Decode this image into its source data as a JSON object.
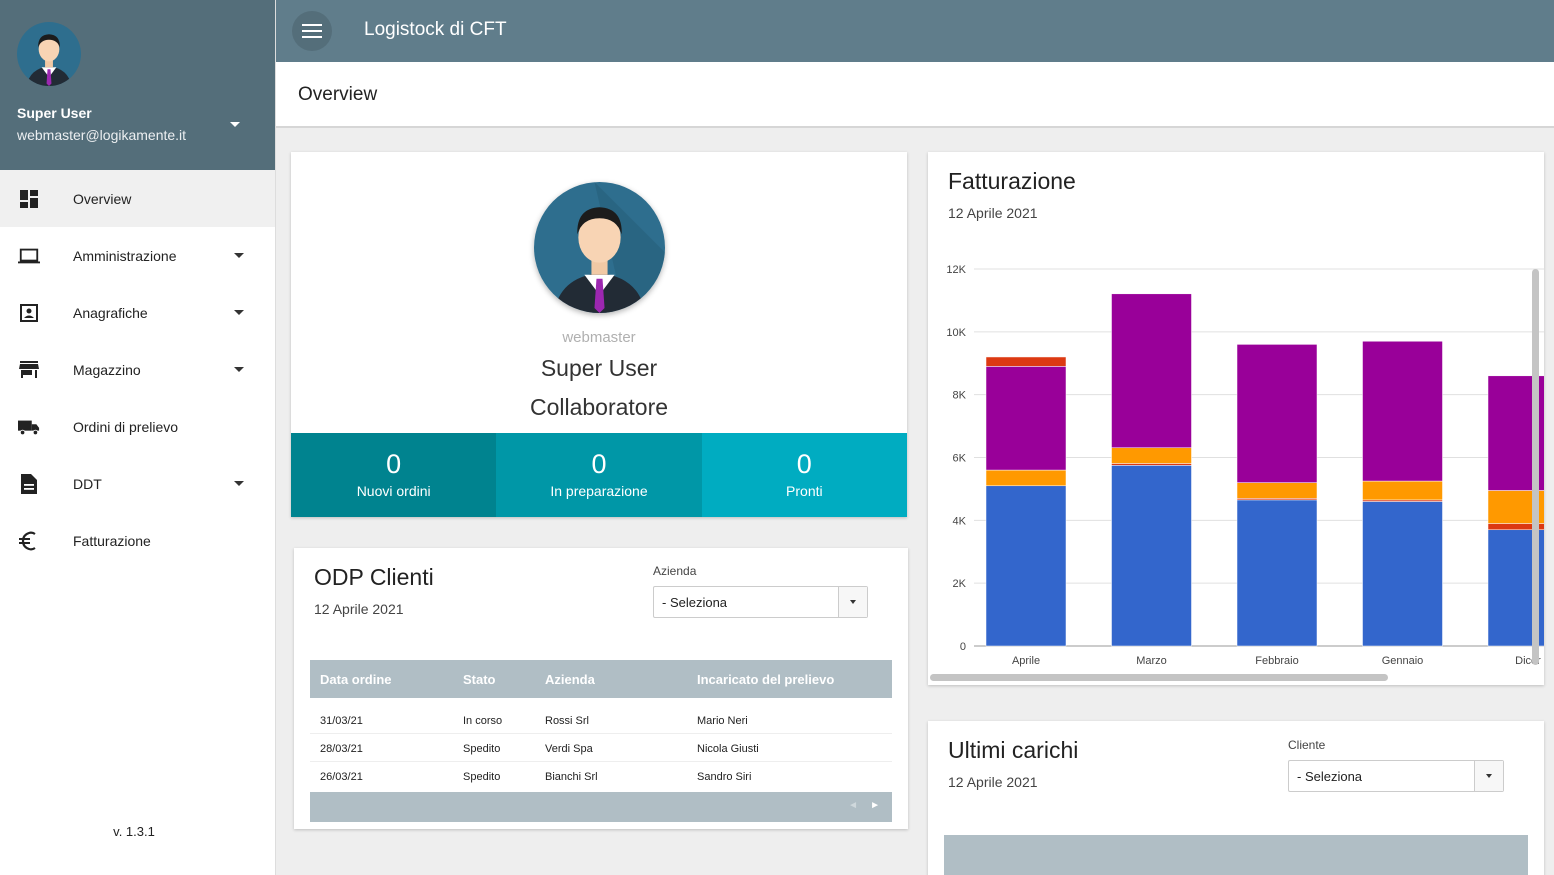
{
  "user": {
    "name": "Super User",
    "email": "webmaster@logikamente.it",
    "username": "webmaster",
    "role": "Collaboratore"
  },
  "sidebar": {
    "items": [
      {
        "label": "Overview",
        "icon": "dashboard-icon",
        "active": true,
        "has_submenu": false
      },
      {
        "label": "Amministrazione",
        "icon": "laptop-icon",
        "active": false,
        "has_submenu": true
      },
      {
        "label": "Anagrafiche",
        "icon": "contact-card-icon",
        "active": false,
        "has_submenu": true
      },
      {
        "label": "Magazzino",
        "icon": "store-icon",
        "active": false,
        "has_submenu": true
      },
      {
        "label": "Ordini di prelievo",
        "icon": "truck-icon",
        "active": false,
        "has_submenu": false
      },
      {
        "label": "DDT",
        "icon": "document-icon",
        "active": false,
        "has_submenu": true
      },
      {
        "label": "Fatturazione",
        "icon": "euro-icon",
        "active": false,
        "has_submenu": false
      }
    ],
    "version": "v. 1.3.1"
  },
  "header": {
    "app_title": "Logistock di CFT",
    "page_title": "Overview"
  },
  "colors": {
    "topbar": "#607d8b",
    "sidebar_header": "#546e7a",
    "stat_1": "#00838f",
    "stat_2": "#0097a7",
    "stat_3": "#00acc1",
    "table_header": "#b0bec5"
  },
  "stats": [
    {
      "value": "0",
      "label": "Nuovi ordini"
    },
    {
      "value": "0",
      "label": "In preparazione"
    },
    {
      "value": "0",
      "label": "Pronti"
    }
  ],
  "odp": {
    "title": "ODP Clienti",
    "date": "12 Aprile 2021",
    "filter_label": "Azienda",
    "filter_value": "- Seleziona",
    "columns": [
      "Data ordine",
      "Stato",
      "Azienda",
      "Incaricato del prelievo"
    ],
    "rows": [
      [
        "31/03/21",
        "In corso",
        "Rossi Srl",
        "Mario Neri"
      ],
      [
        "28/03/21",
        "Spedito",
        "Verdi Spa",
        "Nicola Giusti"
      ],
      [
        "26/03/21",
        "Spedito",
        "Bianchi Srl",
        "Sandro Siri"
      ]
    ],
    "pager_prev": "◄",
    "pager_next": "►"
  },
  "fatturazione": {
    "title": "Fatturazione",
    "date": "12 Aprile 2021"
  },
  "chart_data": {
    "type": "bar",
    "stacked": true,
    "categories": [
      "Aprile",
      "Marzo",
      "Febbraio",
      "Gennaio",
      "Dicer"
    ],
    "series": [
      {
        "color": "#3366cc",
        "values": [
          5100,
          5750,
          4650,
          4600,
          3700
        ]
      },
      {
        "color": "#dc3912",
        "values": [
          0,
          60,
          50,
          50,
          200
        ]
      },
      {
        "color": "#ff9900",
        "values": [
          500,
          500,
          500,
          600,
          1050
        ]
      },
      {
        "color": "#990099",
        "values": [
          3300,
          4900,
          4400,
          4450,
          3650
        ]
      },
      {
        "color": "#dc3912",
        "values": [
          300,
          0,
          0,
          0,
          0
        ]
      }
    ],
    "y_ticks": [
      "0",
      "2K",
      "4K",
      "6K",
      "8K",
      "10K",
      "12K"
    ],
    "ylim": [
      0,
      12000
    ],
    "grid": true
  },
  "carichi": {
    "title": "Ultimi carichi",
    "date": "12 Aprile 2021",
    "filter_label": "Cliente",
    "filter_value": "- Seleziona"
  }
}
